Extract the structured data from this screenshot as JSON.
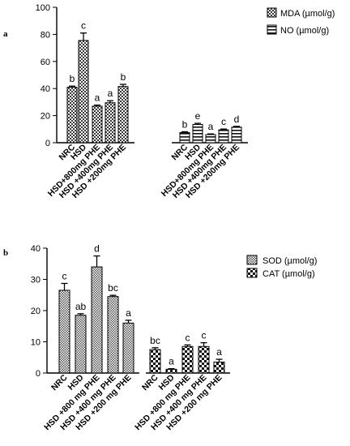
{
  "chart_data": [
    {
      "type": "bar",
      "panel_label": "a",
      "ylim": [
        0,
        100
      ],
      "yticks": [
        0,
        20,
        40,
        60,
        80,
        100
      ],
      "grid": false,
      "legend_position": "top-right",
      "series": [
        {
          "name": "MDA (µmol/g)",
          "pattern": "checker",
          "categories": [
            "NRC",
            "HSD",
            "HSD+800mg PHE",
            "HSD +400mg PHE",
            "HSD +200mg PHE"
          ],
          "values": [
            41,
            75.5,
            27,
            29.5,
            41.5
          ],
          "errors": [
            0.8,
            5.5,
            0.8,
            1.5,
            1.6
          ],
          "letters": [
            "b",
            "c",
            "a",
            "a",
            "b"
          ]
        },
        {
          "name": "NO (µmol/g)",
          "pattern": "hstripe",
          "categories": [
            "NRC",
            "HSD",
            "HSD+800mg PHE",
            "HSD +400mg PHE",
            "HSD +200mg PHE"
          ],
          "values": [
            7.5,
            13.5,
            6,
            9.5,
            11.5
          ],
          "errors": [
            0.6,
            0.8,
            0.5,
            0.6,
            0.6
          ],
          "letters": [
            "b",
            "e",
            "a",
            "c",
            "d"
          ]
        }
      ]
    },
    {
      "type": "bar",
      "panel_label": "b",
      "ylim": [
        0,
        40
      ],
      "yticks": [
        0,
        10,
        20,
        30,
        40
      ],
      "grid": false,
      "legend_position": "top-right",
      "series": [
        {
          "name": "SOD (µmol/g)",
          "pattern": "finecheck",
          "categories": [
            "NRC",
            "HSD",
            "HSD +800 mg PHE",
            "HSD +400 mg PHE",
            "HSD +200 mg PHE"
          ],
          "values": [
            26.5,
            18.5,
            34,
            24.5,
            16
          ],
          "errors": [
            2.2,
            0.5,
            3.5,
            0.4,
            0.9
          ],
          "letters": [
            "c",
            "ab",
            "d",
            "bc",
            "a"
          ]
        },
        {
          "name": "CAT (µmol/g)",
          "pattern": "coarsecheck",
          "categories": [
            "NRC",
            "HSD",
            "HSD +800 mg PHE",
            "HSD +400 mg PHE",
            "HSD +200 mg PHE"
          ],
          "values": [
            7.5,
            1.2,
            8.5,
            8.5,
            3.5
          ],
          "errors": [
            0.6,
            0.2,
            0.5,
            1.2,
            0.9
          ],
          "letters": [
            "bc",
            "a",
            "c",
            "c",
            "a"
          ]
        }
      ]
    }
  ]
}
